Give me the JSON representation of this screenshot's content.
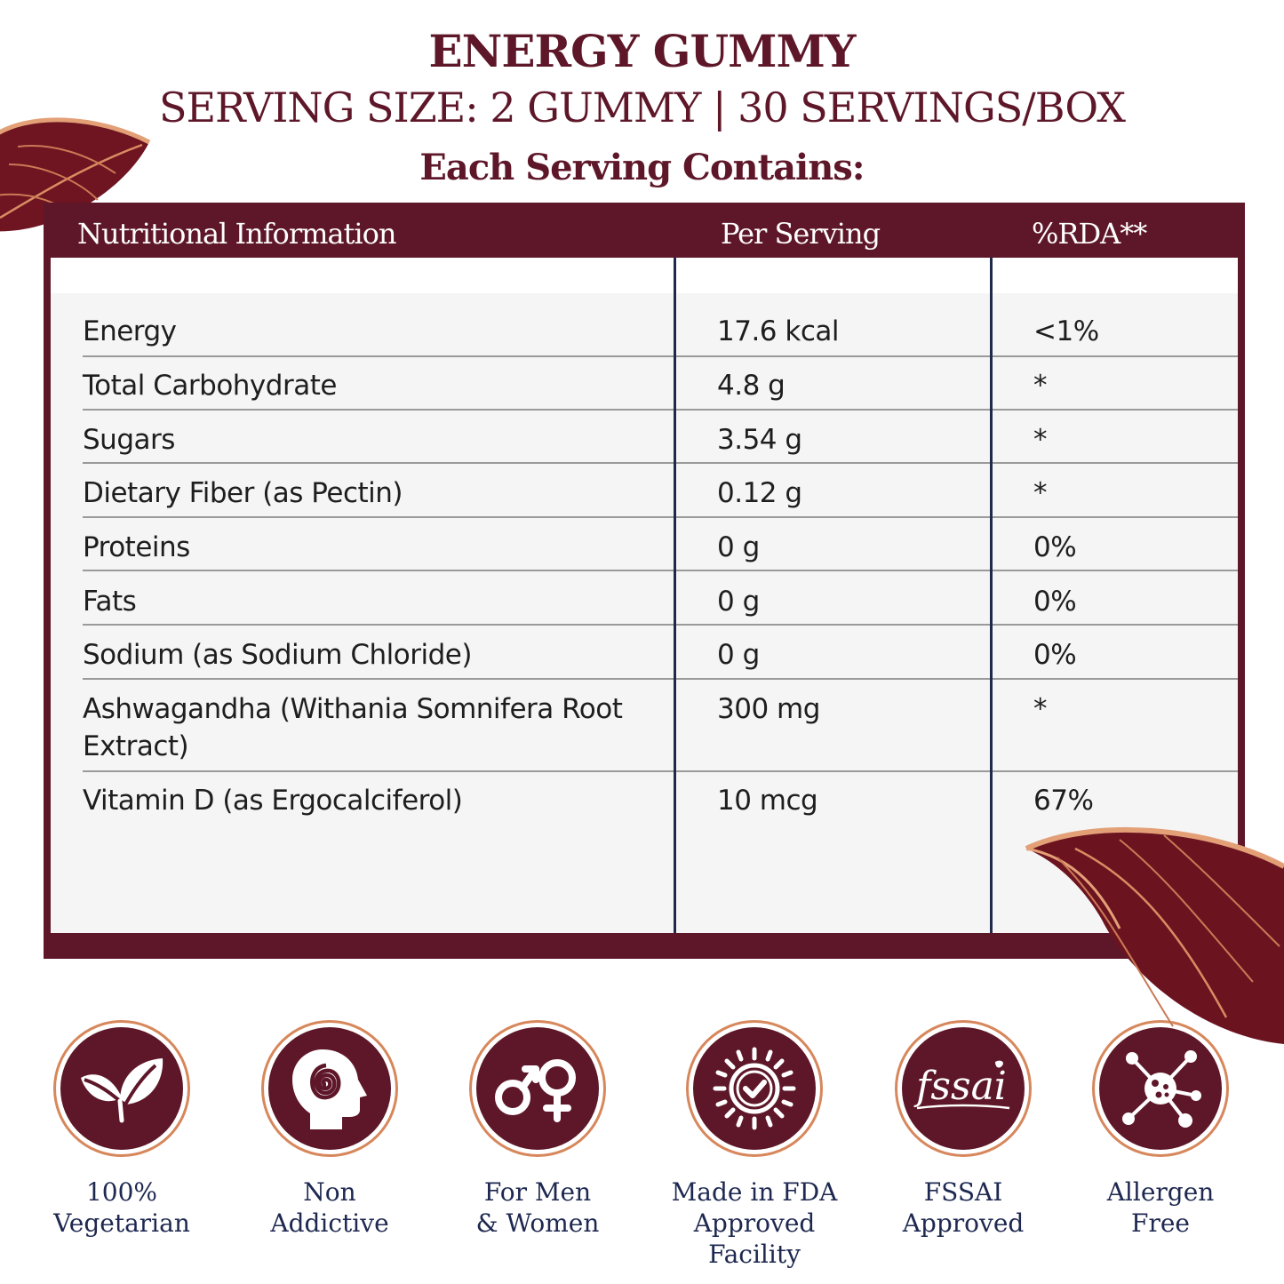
{
  "header": {
    "title": "ENERGY GUMMY",
    "serving": "SERVING SIZE: 2 GUMMY | 30 SERVINGS/BOX",
    "subtitle": "Each Serving Contains:"
  },
  "colors": {
    "brand": "#5e1729",
    "ring": "#d7875c",
    "label_text": "#1e2850",
    "divider": "#1f2a4a"
  },
  "table": {
    "headers": [
      "Nutritional Information",
      "Per Serving",
      "%RDA**"
    ],
    "rows": [
      {
        "name": "Energy",
        "amount": "17.6 kcal",
        "rda": "<1%"
      },
      {
        "name": "Total Carbohydrate",
        "amount": "4.8 g",
        "rda": "*"
      },
      {
        "name": "Sugars",
        "amount": "3.54 g",
        "rda": "*"
      },
      {
        "name": "Dietary Fiber (as Pectin)",
        "amount": "0.12 g",
        "rda": "*"
      },
      {
        "name": "Proteins",
        "amount": "0 g",
        "rda": "0%"
      },
      {
        "name": "Fats",
        "amount": "0 g",
        "rda": "0%"
      },
      {
        "name": "Sodium (as Sodium Chloride)",
        "amount": "0 g",
        "rda": "0%"
      },
      {
        "name": "Ashwagandha (Withania Somnifera Root Extract)",
        "amount": "300 mg",
        "rda": "*"
      },
      {
        "name": "Vitamin D (as Ergocalciferol)",
        "amount": "10 mcg",
        "rda": "67%"
      }
    ]
  },
  "badges": [
    {
      "icon": "leaf-icon",
      "line1": "100%",
      "line2": "Vegetarian"
    },
    {
      "icon": "head-spiral-icon",
      "line1": "Non",
      "line2": "Addictive"
    },
    {
      "icon": "gender-icon",
      "line1": "For Men",
      "line2": "& Women"
    },
    {
      "icon": "sun-check-icon",
      "line1": "Made in FDA",
      "line2": "Approved Facility"
    },
    {
      "icon": "fssai-logo-icon",
      "logo_text": "fssai",
      "line1": "FSSAI",
      "line2": "Approved"
    },
    {
      "icon": "allergen-molecule-icon",
      "line1": "Allergen",
      "line2": "Free"
    }
  ]
}
